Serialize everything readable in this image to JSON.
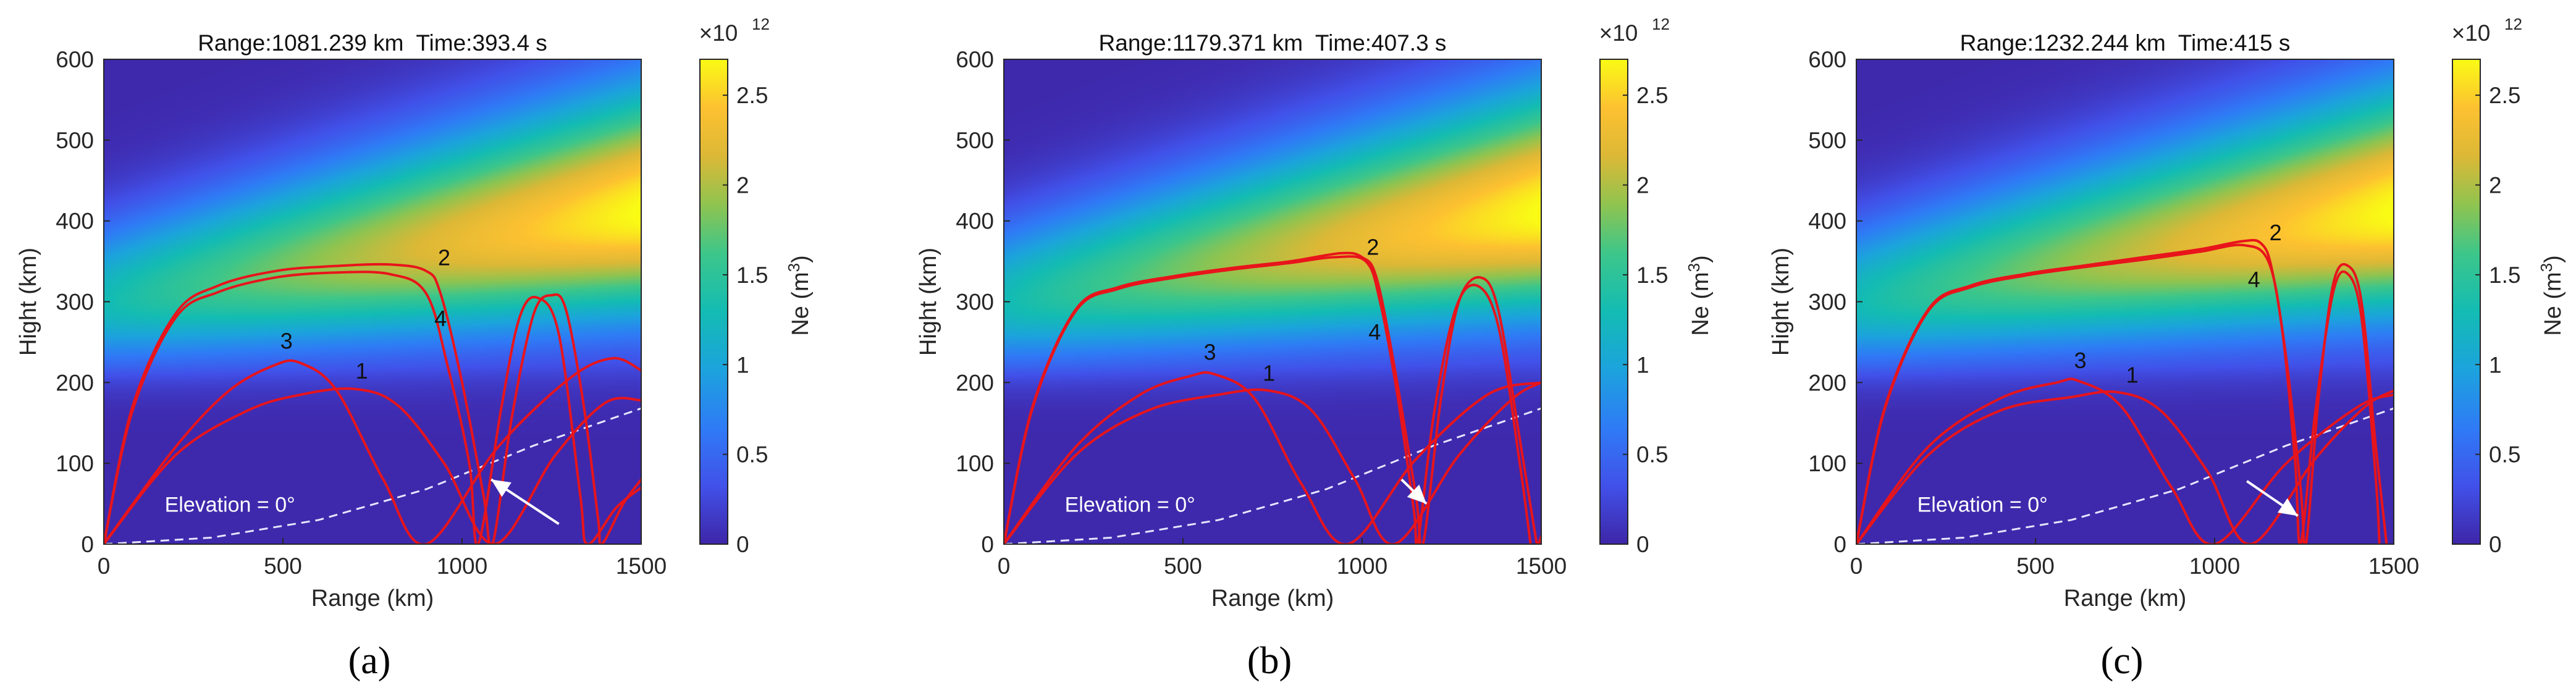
{
  "figure": {
    "colorbar_exponent": "×10",
    "colorbar_exponent_power": "12",
    "colorbar_label": "Ne (m",
    "colorbar_label_sup": "3",
    "colorbar_label_end": ")",
    "colorbar_ticks": [
      0,
      0.5,
      1,
      1.5,
      2,
      2.5
    ],
    "colorbar_tick_labels": [
      "0",
      "0.5",
      "1",
      "1.5",
      "2",
      "2.5"
    ],
    "colorbar_range": [
      0,
      2.7
    ],
    "elevation_label": "Elevation = 0°",
    "colors": {
      "ray": "#e8141b",
      "elevation": "#e6e6ff",
      "marker": "#ffffff",
      "axis": "#262626"
    }
  },
  "chart_data": [
    {
      "type": "heatmap",
      "panel_label": "(a)",
      "title": "Range:1081.239 km  Time:393.4 s",
      "xlabel": "Range (km)",
      "ylabel": "Hight (km)",
      "xlim": [
        0,
        1500
      ],
      "ylim": [
        0,
        600
      ],
      "xticks": [
        0,
        500,
        1000,
        1500
      ],
      "yticks": [
        0,
        100,
        200,
        300,
        400,
        500,
        600
      ],
      "target": {
        "range": 1081.239,
        "height": 80
      },
      "arrow_from": {
        "range": 1270,
        "height": 25
      },
      "rays": [
        {
          "label": "1",
          "label_at": [
            720,
            205
          ],
          "points": [
            [
              0,
              0
            ],
            [
              200,
              110
            ],
            [
              400,
              165
            ],
            [
              550,
              185
            ],
            [
              700,
              192
            ],
            [
              820,
              172
            ],
            [
              950,
              100
            ],
            [
              1090,
              0
            ],
            [
              1260,
              110
            ],
            [
              1400,
              175
            ],
            [
              1500,
              178
            ]
          ]
        },
        {
          "label": "2",
          "label_at": [
            950,
            345
          ],
          "points": [
            [
              0,
              0
            ],
            [
              80,
              170
            ],
            [
              200,
              285
            ],
            [
              320,
              320
            ],
            [
              480,
              338
            ],
            [
              640,
              344
            ],
            [
              800,
              346
            ],
            [
              900,
              338
            ],
            [
              940,
              310
            ],
            [
              1000,
              200
            ],
            [
              1060,
              60
            ],
            [
              1085,
              0
            ],
            [
              1140,
              160
            ],
            [
              1200,
              285
            ],
            [
              1250,
              308
            ],
            [
              1290,
              290
            ],
            [
              1340,
              170
            ],
            [
              1380,
              30
            ],
            [
              1390,
              0
            ],
            [
              1450,
              50
            ],
            [
              1500,
              80
            ]
          ]
        },
        {
          "label": "3",
          "label_at": [
            510,
            242
          ],
          "points": [
            [
              0,
              0
            ],
            [
              200,
              120
            ],
            [
              350,
              190
            ],
            [
              480,
              222
            ],
            [
              550,
              224
            ],
            [
              650,
              190
            ],
            [
              780,
              80
            ],
            [
              900,
              0
            ],
            [
              1100,
              120
            ],
            [
              1300,
              205
            ],
            [
              1420,
              230
            ],
            [
              1500,
              215
            ]
          ]
        },
        {
          "label": "4",
          "label_at": [
            940,
            270
          ],
          "points": [
            [
              0,
              0
            ],
            [
              80,
              165
            ],
            [
              200,
              280
            ],
            [
              320,
              312
            ],
            [
              480,
              330
            ],
            [
              640,
              336
            ],
            [
              800,
              334
            ],
            [
              900,
              310
            ],
            [
              960,
              220
            ],
            [
              1020,
              100
            ],
            [
              1045,
              0
            ],
            [
              1110,
              170
            ],
            [
              1160,
              280
            ],
            [
              1210,
              305
            ],
            [
              1270,
              260
            ],
            [
              1330,
              60
            ],
            [
              1350,
              0
            ],
            [
              1430,
              45
            ],
            [
              1500,
              70
            ]
          ]
        }
      ],
      "elevation": [
        [
          0,
          0
        ],
        [
          300,
          8
        ],
        [
          600,
          30
        ],
        [
          900,
          68
        ],
        [
          1200,
          122
        ],
        [
          1500,
          168
        ]
      ]
    },
    {
      "type": "heatmap",
      "panel_label": "(b)",
      "title": "Range:1179.371 km  Time:407.3 s",
      "xlabel": "Range (km)",
      "ylabel": "Hight (km)",
      "xlim": [
        0,
        1500
      ],
      "ylim": [
        0,
        600
      ],
      "xticks": [
        0,
        500,
        1000,
        1500
      ],
      "yticks": [
        0,
        100,
        200,
        300,
        400,
        500,
        600
      ],
      "target": {
        "range": 1179.371,
        "height": 50
      },
      "arrow_from": {
        "range": 1110,
        "height": 80
      },
      "rays": [
        {
          "label": "1",
          "label_at": [
            740,
            202
          ],
          "points": [
            [
              0,
              0
            ],
            [
              200,
              110
            ],
            [
              400,
              165
            ],
            [
              600,
              185
            ],
            [
              740,
              190
            ],
            [
              860,
              165
            ],
            [
              980,
              80
            ],
            [
              1090,
              0
            ],
            [
              1270,
              110
            ],
            [
              1420,
              180
            ],
            [
              1500,
              200
            ]
          ]
        },
        {
          "label": "2",
          "label_at": [
            1030,
            358
          ],
          "points": [
            [
              0,
              0
            ],
            [
              80,
              170
            ],
            [
              200,
              290
            ],
            [
              320,
              318
            ],
            [
              480,
              332
            ],
            [
              640,
              342
            ],
            [
              800,
              350
            ],
            [
              940,
              360
            ],
            [
              1000,
              355
            ],
            [
              1040,
              330
            ],
            [
              1090,
              220
            ],
            [
              1150,
              60
            ],
            [
              1170,
              0
            ],
            [
              1220,
              180
            ],
            [
              1270,
              300
            ],
            [
              1330,
              330
            ],
            [
              1380,
              290
            ],
            [
              1440,
              130
            ],
            [
              1480,
              20
            ],
            [
              1490,
              0
            ],
            [
              1500,
              10
            ]
          ]
        },
        {
          "label": "3",
          "label_at": [
            575,
            228
          ],
          "points": [
            [
              0,
              0
            ],
            [
              200,
              120
            ],
            [
              380,
              185
            ],
            [
              520,
              208
            ],
            [
              590,
              210
            ],
            [
              700,
              180
            ],
            [
              830,
              75
            ],
            [
              960,
              0
            ],
            [
              1150,
              105
            ],
            [
              1350,
              185
            ],
            [
              1500,
              200
            ]
          ]
        },
        {
          "label": "4",
          "label_at": [
            1035,
            253
          ],
          "points": [
            [
              0,
              0
            ],
            [
              80,
              168
            ],
            [
              200,
              288
            ],
            [
              320,
              316
            ],
            [
              480,
              330
            ],
            [
              640,
              340
            ],
            [
              800,
              348
            ],
            [
              920,
              355
            ],
            [
              1010,
              350
            ],
            [
              1050,
              300
            ],
            [
              1100,
              180
            ],
            [
              1145,
              40
            ],
            [
              1155,
              0
            ],
            [
              1200,
              160
            ],
            [
              1260,
              290
            ],
            [
              1320,
              320
            ],
            [
              1380,
              270
            ],
            [
              1440,
              100
            ],
            [
              1470,
              0
            ]
          ]
        }
      ],
      "elevation": [
        [
          0,
          0
        ],
        [
          300,
          8
        ],
        [
          600,
          30
        ],
        [
          900,
          68
        ],
        [
          1200,
          122
        ],
        [
          1500,
          168
        ]
      ]
    },
    {
      "type": "heatmap",
      "panel_label": "(c)",
      "title": "Range:1232.244 km  Time:415 s",
      "xlabel": "Range (km)",
      "ylabel": "Hight (km)",
      "xlim": [
        0,
        1500
      ],
      "ylim": [
        0,
        600
      ],
      "xticks": [
        0,
        500,
        1000,
        1500
      ],
      "yticks": [
        0,
        100,
        200,
        300,
        400,
        500,
        600
      ],
      "target": {
        "range": 1232.244,
        "height": 35
      },
      "arrow_from": {
        "range": 1090,
        "height": 78
      },
      "rays": [
        {
          "label": "1",
          "label_at": [
            770,
            200
          ],
          "points": [
            [
              0,
              0
            ],
            [
              200,
              110
            ],
            [
              400,
              165
            ],
            [
              600,
              182
            ],
            [
              730,
              188
            ],
            [
              850,
              165
            ],
            [
              980,
              90
            ],
            [
              1100,
              0
            ],
            [
              1280,
              105
            ],
            [
              1420,
              170
            ],
            [
              1500,
              190
            ]
          ]
        },
        {
          "label": "2",
          "label_at": [
            1170,
            376
          ],
          "points": [
            [
              0,
              0
            ],
            [
              80,
              170
            ],
            [
              200,
              290
            ],
            [
              320,
              320
            ],
            [
              480,
              335
            ],
            [
              640,
              345
            ],
            [
              800,
              355
            ],
            [
              960,
              365
            ],
            [
              1080,
              375
            ],
            [
              1130,
              372
            ],
            [
              1160,
              340
            ],
            [
              1200,
              230
            ],
            [
              1240,
              70
            ],
            [
              1255,
              0
            ],
            [
              1290,
              180
            ],
            [
              1330,
              320
            ],
            [
              1370,
              345
            ],
            [
              1410,
              300
            ],
            [
              1450,
              120
            ],
            [
              1480,
              0
            ]
          ]
        },
        {
          "label": "3",
          "label_at": [
            625,
            218
          ],
          "points": [
            [
              0,
              0
            ],
            [
              200,
              120
            ],
            [
              400,
              180
            ],
            [
              560,
              200
            ],
            [
              620,
              202
            ],
            [
              740,
              170
            ],
            [
              880,
              70
            ],
            [
              1000,
              0
            ],
            [
              1200,
              100
            ],
            [
              1400,
              170
            ],
            [
              1500,
              185
            ]
          ]
        },
        {
          "label": "4",
          "label_at": [
            1110,
            318
          ],
          "points": [
            [
              0,
              0
            ],
            [
              80,
              168
            ],
            [
              200,
              288
            ],
            [
              320,
              318
            ],
            [
              480,
              333
            ],
            [
              640,
              343
            ],
            [
              800,
              352
            ],
            [
              960,
              362
            ],
            [
              1080,
              370
            ],
            [
              1150,
              350
            ],
            [
              1190,
              260
            ],
            [
              1225,
              100
            ],
            [
              1240,
              0
            ],
            [
              1280,
              160
            ],
            [
              1330,
              310
            ],
            [
              1370,
              335
            ],
            [
              1410,
              280
            ],
            [
              1450,
              80
            ],
            [
              1460,
              0
            ]
          ]
        }
      ],
      "elevation": [
        [
          0,
          0
        ],
        [
          300,
          8
        ],
        [
          600,
          30
        ],
        [
          900,
          68
        ],
        [
          1200,
          122
        ],
        [
          1500,
          168
        ]
      ]
    }
  ]
}
